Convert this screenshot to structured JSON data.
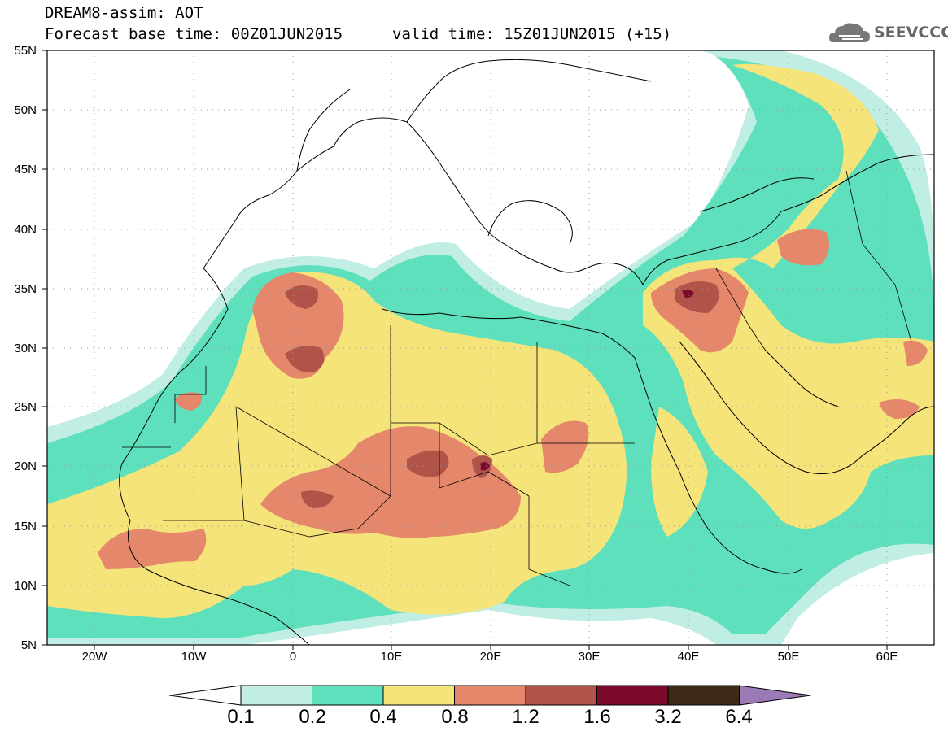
{
  "header": {
    "line1": "DREAM8-assim: AOT",
    "line2": "Forecast base time: 00Z01JUN2015",
    "valid": "valid time: 15Z01JUN2015 (+15)",
    "logo_text": "SEEVCCC",
    "logo_icon": "cloud-icon"
  },
  "axes": {
    "lat_labels": [
      "55N",
      "50N",
      "45N",
      "40N",
      "35N",
      "30N",
      "25N",
      "20N",
      "15N",
      "10N",
      "5N"
    ],
    "lon_labels": [
      "20W",
      "10W",
      "0",
      "10E",
      "20E",
      "30E",
      "40E",
      "50E",
      "60E"
    ]
  },
  "colorbar": {
    "labels": [
      "0.1",
      "0.2",
      "0.4",
      "0.8",
      "1.2",
      "1.6",
      "3.2",
      "6.4"
    ],
    "colors": [
      "#ffffff",
      "#c1eee4",
      "#5ee0bc",
      "#f5e47a",
      "#e4876a",
      "#b0544a",
      "#7b0a2c",
      "#3d2a18",
      "#9b7ab5"
    ]
  }
}
